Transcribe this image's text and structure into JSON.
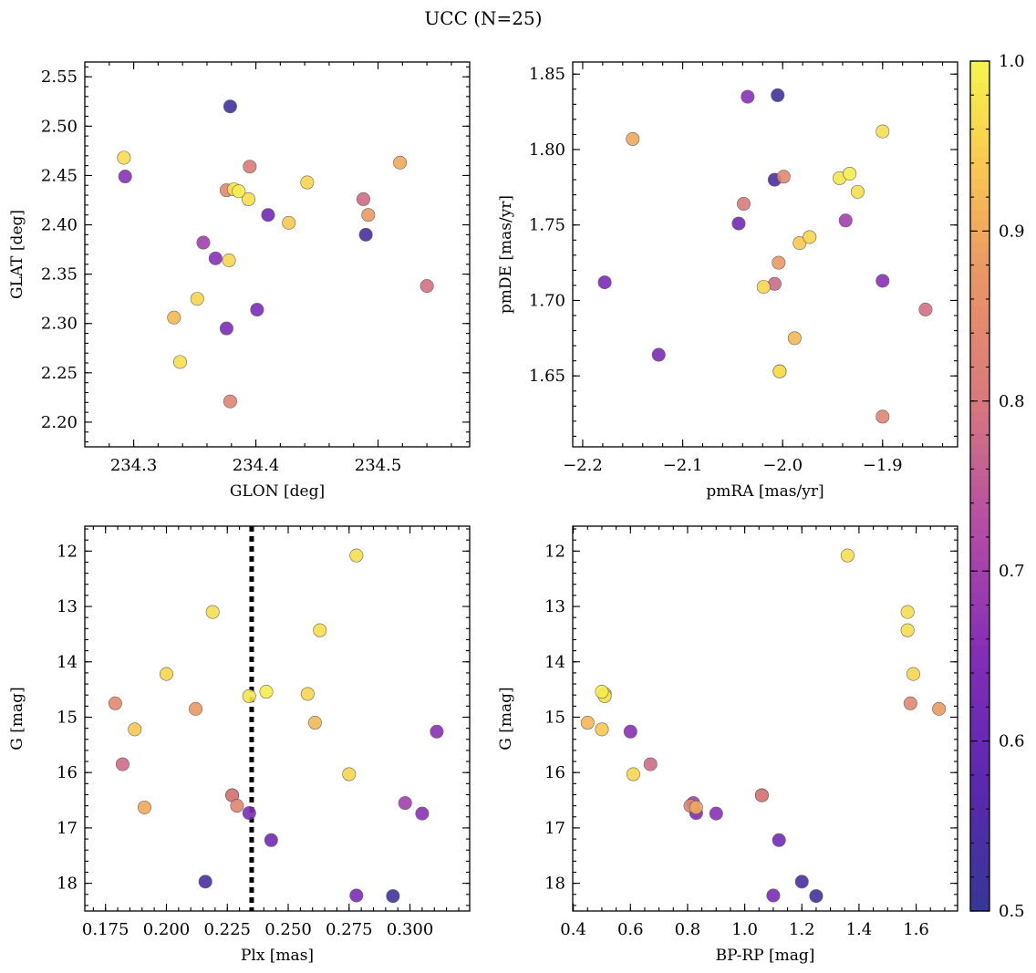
{
  "chart_data": {
    "type": "scatter",
    "title": "UCC (N=25)",
    "colorbar": {
      "min": 0.5,
      "max": 1.0,
      "ticks": [
        0.5,
        0.6,
        0.7,
        0.8,
        0.9,
        1.0
      ],
      "tick_labels": [
        "0.5",
        "0.6",
        "0.7",
        "0.8",
        "0.9",
        "1.0"
      ],
      "colormap": "plasma"
    },
    "members": [
      {
        "glon": 234.379,
        "glat": 2.52,
        "pmra": -2.005,
        "pmde": 1.836,
        "plx": 0.293,
        "g": 18.23,
        "bprp": 1.25,
        "p": 0.52
      },
      {
        "glon": 234.292,
        "glat": 2.468,
        "pmra": -1.9,
        "pmde": 1.812,
        "plx": 0.219,
        "g": 13.1,
        "bprp": 1.57,
        "p": 0.97
      },
      {
        "glon": 234.293,
        "glat": 2.449,
        "pmra": -2.035,
        "pmde": 1.835,
        "plx": 0.311,
        "g": 15.26,
        "bprp": 0.6,
        "p": 0.66
      },
      {
        "glon": 234.395,
        "glat": 2.459,
        "pmra": -2.039,
        "pmde": 1.764,
        "plx": 0.227,
        "g": 16.41,
        "bprp": 1.06,
        "p": 0.81
      },
      {
        "glon": 234.518,
        "glat": 2.463,
        "pmra": -2.15,
        "pmde": 1.807,
        "plx": 0.191,
        "g": 16.63,
        "bprp": 0.83,
        "p": 0.9
      },
      {
        "glon": 234.442,
        "glat": 2.443,
        "pmra": -1.973,
        "pmde": 1.742,
        "plx": 0.258,
        "g": 14.58,
        "bprp": 0.51,
        "p": 0.96
      },
      {
        "glon": 234.376,
        "glat": 2.435,
        "pmra": -1.999,
        "pmde": 1.782,
        "plx": 0.179,
        "g": 14.75,
        "bprp": 1.58,
        "p": 0.84
      },
      {
        "glon": 234.382,
        "glat": 2.436,
        "pmra": -1.943,
        "pmde": 1.781,
        "plx": 0.234,
        "g": 14.62,
        "bprp": 0.51,
        "p": 0.98
      },
      {
        "glon": 234.386,
        "glat": 2.434,
        "pmra": -1.933,
        "pmde": 1.784,
        "plx": 0.241,
        "g": 14.54,
        "bprp": 0.5,
        "p": 0.99
      },
      {
        "glon": 234.394,
        "glat": 2.426,
        "pmra": -1.925,
        "pmde": 1.772,
        "plx": 0.263,
        "g": 13.43,
        "bprp": 1.57,
        "p": 0.97
      },
      {
        "glon": 234.488,
        "glat": 2.426,
        "pmra": -2.008,
        "pmde": 1.711,
        "plx": 0.182,
        "g": 15.85,
        "bprp": 0.67,
        "p": 0.78
      },
      {
        "glon": 234.41,
        "glat": 2.41,
        "pmra": -2.044,
        "pmde": 1.751,
        "plx": 0.243,
        "g": 17.22,
        "bprp": 1.12,
        "p": 0.62
      },
      {
        "glon": 234.492,
        "glat": 2.41,
        "pmra": -2.004,
        "pmde": 1.725,
        "plx": 0.212,
        "g": 14.85,
        "bprp": 1.68,
        "p": 0.88
      },
      {
        "glon": 234.427,
        "glat": 2.402,
        "pmra": -1.983,
        "pmde": 1.738,
        "plx": 0.187,
        "g": 15.22,
        "bprp": 0.5,
        "p": 0.94
      },
      {
        "glon": 234.49,
        "glat": 2.39,
        "pmra": -2.008,
        "pmde": 1.78,
        "plx": 0.216,
        "g": 17.97,
        "bprp": 1.2,
        "p": 0.54
      },
      {
        "glon": 234.357,
        "glat": 2.382,
        "pmra": -1.937,
        "pmde": 1.753,
        "plx": 0.298,
        "g": 16.55,
        "bprp": 0.82,
        "p": 0.7
      },
      {
        "glon": 234.367,
        "glat": 2.366,
        "pmra": -1.9,
        "pmde": 1.713,
        "plx": 0.305,
        "g": 16.74,
        "bprp": 0.9,
        "p": 0.66
      },
      {
        "glon": 234.378,
        "glat": 2.364,
        "pmra": -2.019,
        "pmde": 1.709,
        "plx": 0.2,
        "g": 14.22,
        "bprp": 1.59,
        "p": 0.96
      },
      {
        "glon": 234.54,
        "glat": 2.338,
        "pmra": -1.857,
        "pmde": 1.694,
        "plx": 0.227,
        "g": 16.41,
        "bprp": 1.06,
        "p": 0.79
      },
      {
        "glon": 234.352,
        "glat": 2.325,
        "pmra": -2.003,
        "pmde": 1.653,
        "plx": 0.275,
        "g": 16.03,
        "bprp": 0.61,
        "p": 0.96
      },
      {
        "glon": 234.401,
        "glat": 2.314,
        "pmra": -2.178,
        "pmde": 1.712,
        "plx": 0.234,
        "g": 16.73,
        "bprp": 0.83,
        "p": 0.64
      },
      {
        "glon": 234.333,
        "glat": 2.306,
        "pmra": -1.988,
        "pmde": 1.675,
        "plx": 0.261,
        "g": 15.1,
        "bprp": 0.45,
        "p": 0.92
      },
      {
        "glon": 234.376,
        "glat": 2.295,
        "pmra": -2.124,
        "pmde": 1.664,
        "plx": 0.278,
        "g": 18.22,
        "bprp": 1.1,
        "p": 0.64
      },
      {
        "glon": 234.338,
        "glat": 2.261,
        "pmra": -2.003,
        "pmde": 1.653,
        "plx": 0.278,
        "g": 12.08,
        "bprp": 1.36,
        "p": 0.97
      },
      {
        "glon": 234.379,
        "glat": 2.221,
        "pmra": -1.9,
        "pmde": 1.623,
        "plx": 0.229,
        "g": 16.6,
        "bprp": 0.81,
        "p": 0.83
      }
    ],
    "panels": [
      {
        "id": "glon-glat",
        "x": "glon",
        "y": "glat",
        "xlabel": "GLON [deg]",
        "ylabel": "GLAT [deg]",
        "xlim": [
          234.26,
          234.575
        ],
        "ylim": [
          2.175,
          2.565
        ],
        "y_inverted": false,
        "xticks": [
          234.3,
          234.4,
          234.5
        ],
        "xtick_labels": [
          "234.3",
          "234.4",
          "234.5"
        ],
        "yticks": [
          2.2,
          2.25,
          2.3,
          2.35,
          2.4,
          2.45,
          2.5,
          2.55
        ],
        "ytick_labels": [
          "2.20",
          "2.25",
          "2.30",
          "2.35",
          "2.40",
          "2.45",
          "2.50",
          "2.55"
        ],
        "xminor": 0.02,
        "yminor": 0.01
      },
      {
        "id": "pmra-pmde",
        "x": "pmra",
        "y": "pmde",
        "xlabel": "pmRA [mas/yr]",
        "ylabel": "pmDE [mas/yr]",
        "xlim": [
          -2.21,
          -1.825
        ],
        "ylim": [
          1.603,
          1.858
        ],
        "y_inverted": false,
        "xticks": [
          -2.2,
          -2.1,
          -2.0,
          -1.9
        ],
        "xtick_labels": [
          "−2.2",
          "−2.1",
          "−2.0",
          "−1.9"
        ],
        "yticks": [
          1.65,
          1.7,
          1.75,
          1.8,
          1.85
        ],
        "ytick_labels": [
          "1.65",
          "1.70",
          "1.75",
          "1.80",
          "1.85"
        ],
        "xminor": 0.02,
        "yminor": 0.01
      },
      {
        "id": "plx-g",
        "x": "plx",
        "y": "g",
        "xlabel": "Plx [mas]",
        "ylabel": "G [mag]",
        "xlim": [
          0.1665,
          0.3245
        ],
        "ylim": [
          11.55,
          18.5
        ],
        "y_inverted": true,
        "xticks": [
          0.175,
          0.2,
          0.225,
          0.25,
          0.275,
          0.3
        ],
        "xtick_labels": [
          "0.175",
          "0.200",
          "0.225",
          "0.250",
          "0.275",
          "0.300"
        ],
        "yticks": [
          12,
          13,
          14,
          15,
          16,
          17,
          18
        ],
        "ytick_labels": [
          "12",
          "13",
          "14",
          "15",
          "16",
          "17",
          "18"
        ],
        "xminor": 0.005,
        "yminor": 0.2,
        "vline": 0.235
      },
      {
        "id": "bprp-g",
        "x": "bprp",
        "y": "g",
        "xlabel": "BP-RP [mag]",
        "ylabel": "G [mag]",
        "xlim": [
          0.398,
          1.745
        ],
        "ylim": [
          11.55,
          18.5
        ],
        "y_inverted": true,
        "xticks": [
          0.4,
          0.6,
          0.8,
          1.0,
          1.2,
          1.4,
          1.6
        ],
        "xtick_labels": [
          "0.4",
          "0.6",
          "0.8",
          "1.0",
          "1.2",
          "1.4",
          "1.6"
        ],
        "yticks": [
          12,
          13,
          14,
          15,
          16,
          17,
          18
        ],
        "ytick_labels": [
          "12",
          "13",
          "14",
          "15",
          "16",
          "17",
          "18"
        ],
        "xminor": 0.05,
        "yminor": 0.2
      }
    ]
  }
}
